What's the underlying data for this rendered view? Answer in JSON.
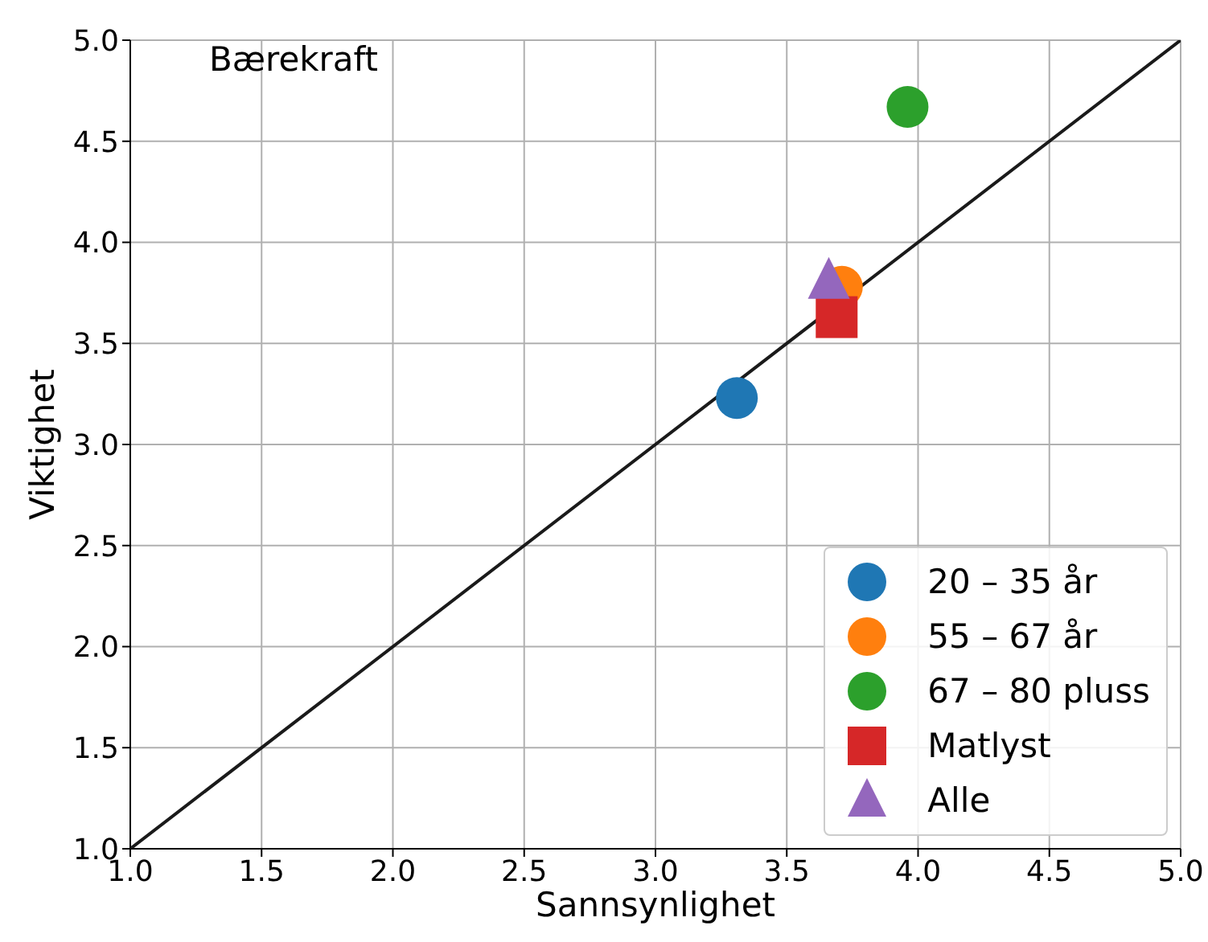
{
  "chart_data": {
    "type": "scatter",
    "xlabel": "Sannsynlighet",
    "ylabel": "Viktighet",
    "annotations": [
      "Bærekraft"
    ],
    "xlim": [
      1.0,
      5.0
    ],
    "xticks": [
      {
        "value": 1,
        "label": "1.0"
      },
      {
        "value": 1.5,
        "label": "1.5"
      },
      {
        "value": 2,
        "label": "2.0"
      },
      {
        "value": 2.5,
        "label": "2.5"
      },
      {
        "value": 3,
        "label": "3.0"
      },
      {
        "value": 3.5,
        "label": "3.5"
      },
      {
        "value": 4,
        "label": "4.0"
      },
      {
        "value": 4.5,
        "label": "4.5"
      },
      {
        "value": 5,
        "label": "5.0"
      }
    ],
    "ylim": [
      1.0,
      5.0
    ],
    "yticks": [
      {
        "value": 1,
        "label": "1.0"
      },
      {
        "value": 1.5,
        "label": "1.5"
      },
      {
        "value": 2,
        "label": "2.0"
      },
      {
        "value": 2.5,
        "label": "2.5"
      },
      {
        "value": 3,
        "label": "3.0"
      },
      {
        "value": 3.5,
        "label": "3.5"
      },
      {
        "value": 4,
        "label": "4.0"
      },
      {
        "value": 4.5,
        "label": "4.5"
      },
      {
        "value": 5,
        "label": "5.0"
      }
    ],
    "grid": true,
    "legend": "bottom right",
    "series": [
      {
        "type": "line",
        "color": "#1a1a1a",
        "x": [
          1,
          5
        ],
        "values": [
          1,
          5
        ],
        "marker": "none",
        "line_style": "solid"
      },
      {
        "name": "20 – 35 år",
        "color": "#1f77b4",
        "marker": "circle",
        "x": [
          3.31
        ],
        "values": [
          3.23
        ]
      },
      {
        "name": "55 – 67 år",
        "color": "#ff7f0e",
        "marker": "circle",
        "x": [
          3.71
        ],
        "values": [
          3.78
        ]
      },
      {
        "name": "67 – 80 pluss",
        "color": "#2ca02c",
        "marker": "circle",
        "x": [
          3.96
        ],
        "values": [
          4.67
        ]
      },
      {
        "name": "Matlyst",
        "color": "#d62728",
        "marker": "square",
        "x": [
          3.69
        ],
        "values": [
          3.63
        ]
      },
      {
        "name": "Alle",
        "color": "#9467bd",
        "marker": "triangle",
        "x": [
          3.66
        ],
        "values": [
          3.8
        ]
      }
    ]
  }
}
